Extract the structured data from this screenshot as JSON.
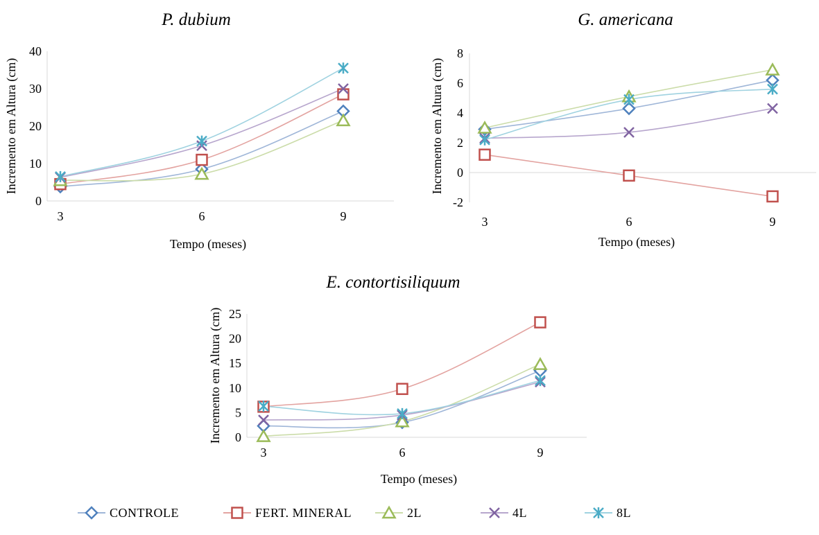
{
  "legend": [
    {
      "name": "CONTROLE",
      "color": "#4f81bd",
      "marker": "diamond"
    },
    {
      "name": "FERT. MINERAL",
      "color": "#c0504d",
      "marker": "square"
    },
    {
      "name": "2L",
      "color": "#9bbb59",
      "marker": "triangle"
    },
    {
      "name": "4L",
      "color": "#8064a2",
      "marker": "x"
    },
    {
      "name": "8L",
      "color": "#4bacc6",
      "marker": "star"
    }
  ],
  "chart_data": [
    {
      "type": "line",
      "title": "P. dubium",
      "xlabel": "Tempo (meses)",
      "ylabel": "Incremento em Altura (cm)",
      "x": [
        3,
        6,
        9
      ],
      "ylim": [
        0,
        40
      ],
      "yticks": [
        0,
        10,
        20,
        30,
        40
      ],
      "series": [
        {
          "name": "CONTROLE",
          "values": [
            3.8,
            8.5,
            24
          ]
        },
        {
          "name": "FERT. MINERAL",
          "values": [
            4.5,
            11,
            28.5
          ]
        },
        {
          "name": "2L",
          "values": [
            5.5,
            7.2,
            21.5
          ]
        },
        {
          "name": "4L",
          "values": [
            6.3,
            14.8,
            30
          ]
        },
        {
          "name": "8L",
          "values": [
            6.5,
            16,
            35.5
          ]
        }
      ]
    },
    {
      "type": "line",
      "title": "G. americana",
      "xlabel": "Tempo (meses)",
      "ylabel": "Incremento em Altura (cm)",
      "x": [
        3,
        6,
        9
      ],
      "ylim": [
        -2,
        8
      ],
      "yticks": [
        -2,
        0,
        2,
        4,
        6,
        8
      ],
      "series": [
        {
          "name": "CONTROLE",
          "values": [
            2.9,
            4.3,
            6.2
          ]
        },
        {
          "name": "FERT. MINERAL",
          "values": [
            1.2,
            -0.2,
            -1.6
          ]
        },
        {
          "name": "2L",
          "values": [
            3.0,
            5.1,
            6.9
          ]
        },
        {
          "name": "4L",
          "values": [
            2.3,
            2.7,
            4.3
          ]
        },
        {
          "name": "8L",
          "values": [
            2.2,
            4.9,
            5.6
          ]
        }
      ]
    },
    {
      "type": "line",
      "title": "E. contortisiliquum",
      "xlabel": "Tempo (meses)",
      "ylabel": "Incremento em Altura (cm)",
      "x": [
        3,
        6,
        9
      ],
      "ylim": [
        0,
        25
      ],
      "yticks": [
        0,
        5,
        10,
        15,
        20,
        25
      ],
      "series": [
        {
          "name": "CONTROLE",
          "values": [
            2.3,
            3.0,
            13.5
          ]
        },
        {
          "name": "FERT. MINERAL",
          "values": [
            6.2,
            9.8,
            23.3
          ]
        },
        {
          "name": "2L",
          "values": [
            0.2,
            3.2,
            14.8
          ]
        },
        {
          "name": "4L",
          "values": [
            3.5,
            4.5,
            11.2
          ]
        },
        {
          "name": "8L",
          "values": [
            6.3,
            4.8,
            11.5
          ]
        }
      ]
    }
  ]
}
